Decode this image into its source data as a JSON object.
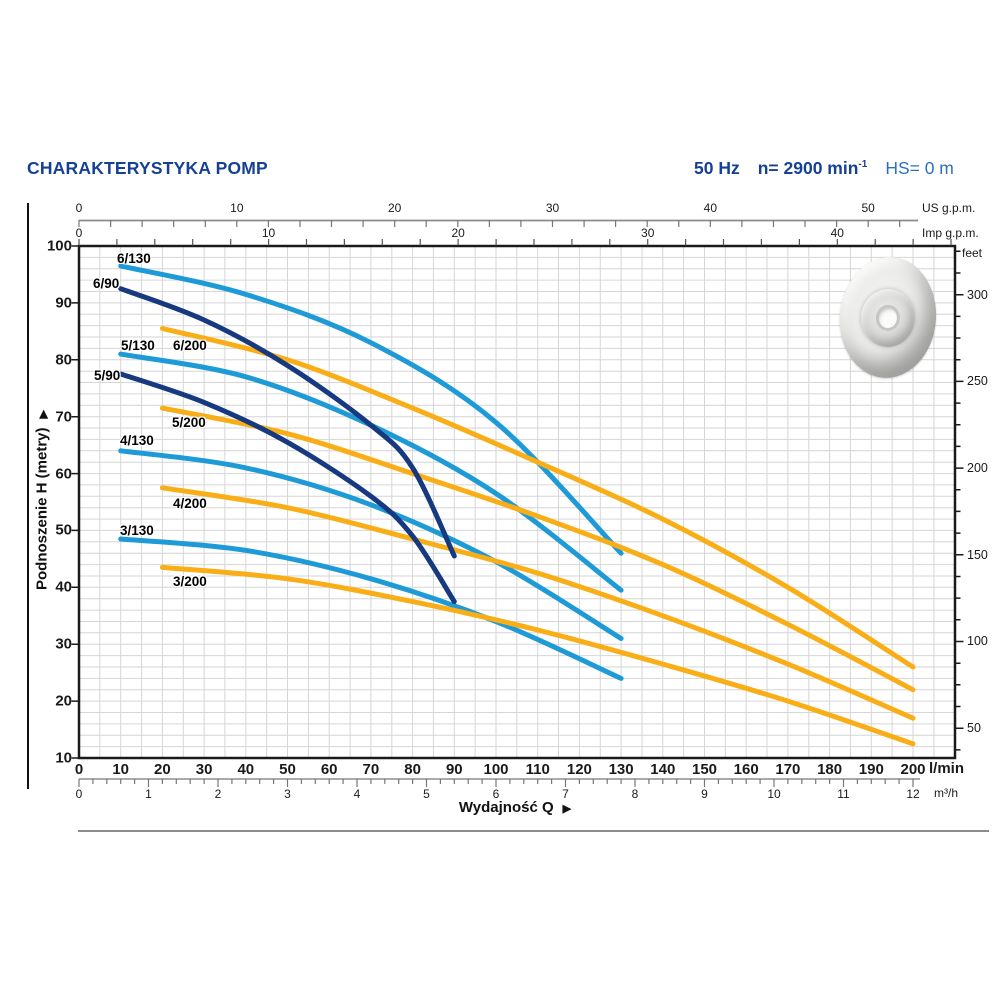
{
  "header": {
    "title": "CHARAKTERYSTYKA POMP",
    "frequency": "50 Hz",
    "speed_base": "n= 2900 min",
    "speed_exp": "-1",
    "hs": "HS= 0 m"
  },
  "colors": {
    "title_blue": "#164193",
    "hs_blue": "#2d71b8",
    "blue": "#1e9bd7",
    "navy": "#16397f",
    "yellow": "#f9ae17",
    "grid": "#d6d6d6",
    "axis_gray": "#8b8b8b",
    "border_black": "#1a1a1a"
  },
  "chart_data": {
    "type": "line",
    "title": "",
    "xlabel": "Wydajność Q",
    "ylabel": "Podnoszenie H  (metry)",
    "arrow": "▶",
    "xlim_lmin": [
      0,
      210
    ],
    "ylim_m": [
      10,
      100
    ],
    "grid": "on",
    "x_axes": {
      "lmin": {
        "unit": "l/min",
        "ticks": [
          0,
          10,
          20,
          30,
          40,
          50,
          60,
          70,
          80,
          90,
          100,
          110,
          120,
          130,
          140,
          150,
          160,
          170,
          180,
          190,
          200
        ]
      },
      "m3h": {
        "unit": "m³/h",
        "ticks": [
          0,
          1,
          2,
          3,
          4,
          5,
          6,
          7,
          8,
          9,
          10,
          11,
          12
        ],
        "lmin_per_unit": 16.6667,
        "minor_step": 0.2
      },
      "us_gpm": {
        "unit": "US g.p.m.",
        "labels": [
          0,
          10,
          20,
          30,
          40,
          50
        ],
        "lmin_per_unit": 3.785,
        "minor_step": 2,
        "minor_max": 52
      },
      "imp_gpm": {
        "unit": "Imp g.p.m.",
        "labels": [
          0,
          10,
          20,
          30,
          40
        ],
        "lmin_per_unit": 4.546,
        "minor_step": 2,
        "minor_max": 46
      }
    },
    "y_axes": {
      "metry": {
        "ticks": [
          10,
          20,
          30,
          40,
          50,
          60,
          70,
          80,
          90,
          100
        ]
      },
      "feet": {
        "unit": "feet",
        "labels": [
          50,
          100,
          150,
          200,
          250,
          300
        ],
        "m_per_unit": 0.3048,
        "minor_step": 12.5,
        "minor_min": 37.5,
        "minor_max": 325
      }
    },
    "series": [
      {
        "name": "6/130",
        "color": "blue",
        "label_pos": [
          117,
          252
        ],
        "points": [
          [
            10,
            96.5
          ],
          [
            40,
            91.5
          ],
          [
            70,
            83
          ],
          [
            100,
            69
          ],
          [
            130,
            46
          ]
        ]
      },
      {
        "name": "5/130",
        "color": "blue",
        "label_pos": [
          121,
          339
        ],
        "points": [
          [
            10,
            81
          ],
          [
            40,
            77
          ],
          [
            70,
            68.5
          ],
          [
            100,
            56.5
          ],
          [
            130,
            39.5
          ]
        ]
      },
      {
        "name": "4/130",
        "color": "blue",
        "label_pos": [
          120,
          434
        ],
        "points": [
          [
            10,
            64
          ],
          [
            40,
            61
          ],
          [
            70,
            54.5
          ],
          [
            100,
            44.5
          ],
          [
            130,
            31
          ]
        ]
      },
      {
        "name": "3/130",
        "color": "blue",
        "label_pos": [
          120,
          524
        ],
        "points": [
          [
            10,
            48.5
          ],
          [
            40,
            46.5
          ],
          [
            70,
            41.5
          ],
          [
            100,
            34
          ],
          [
            130,
            24
          ]
        ]
      },
      {
        "name": "6/200",
        "color": "yellow",
        "label_pos": [
          173,
          339
        ],
        "points": [
          [
            20,
            85.5
          ],
          [
            50,
            80
          ],
          [
            80,
            71.5
          ],
          [
            110,
            62
          ],
          [
            140,
            52
          ],
          [
            170,
            40
          ],
          [
            200,
            26
          ]
        ]
      },
      {
        "name": "5/200",
        "color": "yellow",
        "label_pos": [
          172,
          416
        ],
        "points": [
          [
            20,
            71.5
          ],
          [
            50,
            67
          ],
          [
            80,
            60
          ],
          [
            110,
            52.5
          ],
          [
            140,
            44
          ],
          [
            170,
            33.5
          ],
          [
            200,
            22
          ]
        ]
      },
      {
        "name": "4/200",
        "color": "yellow",
        "label_pos": [
          173,
          497
        ],
        "points": [
          [
            20,
            57.5
          ],
          [
            50,
            54
          ],
          [
            80,
            48.5
          ],
          [
            110,
            42.5
          ],
          [
            140,
            35
          ],
          [
            170,
            26.5
          ],
          [
            200,
            17
          ]
        ]
      },
      {
        "name": "3/200",
        "color": "yellow",
        "label_pos": [
          173,
          575
        ],
        "points": [
          [
            20,
            43.5
          ],
          [
            50,
            41.5
          ],
          [
            80,
            37.5
          ],
          [
            110,
            32.5
          ],
          [
            140,
            26.5
          ],
          [
            170,
            20
          ],
          [
            200,
            12.5
          ]
        ]
      },
      {
        "name": "6/90",
        "color": "navy",
        "label_pos": [
          93,
          277
        ],
        "points": [
          [
            10,
            92.5
          ],
          [
            30,
            87
          ],
          [
            50,
            79
          ],
          [
            70,
            68.5
          ],
          [
            80,
            61
          ],
          [
            90,
            45.5
          ]
        ]
      },
      {
        "name": "5/90",
        "color": "navy",
        "label_pos": [
          94,
          369
        ],
        "points": [
          [
            10,
            77.5
          ],
          [
            30,
            72.5
          ],
          [
            50,
            65.5
          ],
          [
            70,
            56
          ],
          [
            80,
            49
          ],
          [
            90,
            37.5
          ]
        ]
      }
    ]
  }
}
